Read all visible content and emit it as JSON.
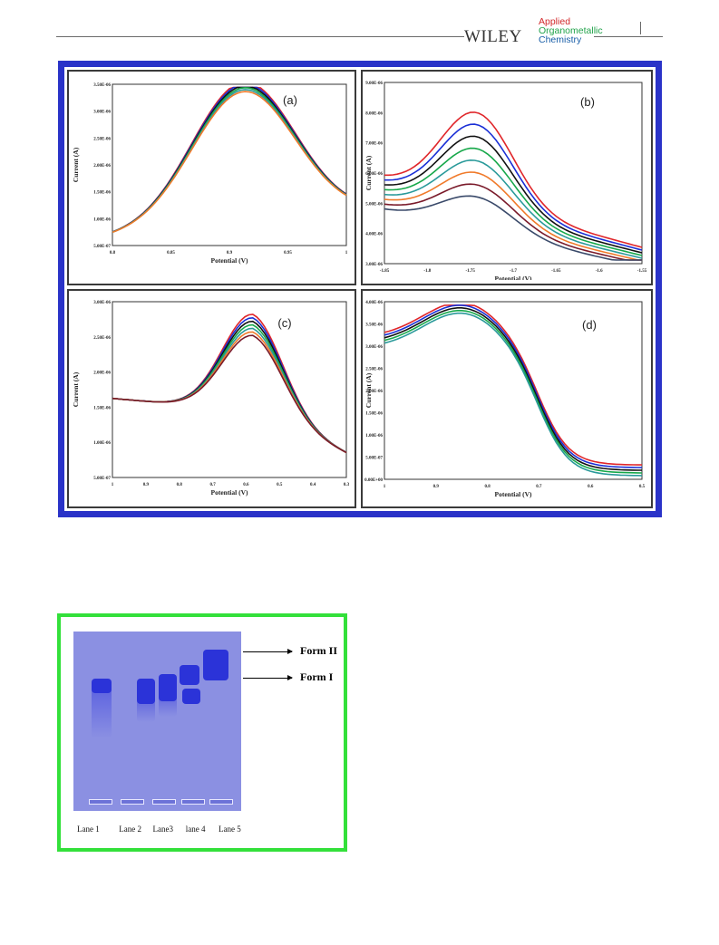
{
  "header": {
    "publisher": "WILEY",
    "journal_line1": "Applied",
    "journal_line2": "Organometallic",
    "journal_line3": "Chemistry"
  },
  "figure1": {
    "panels": [
      {
        "label": "(a)",
        "xlabel": "Potential (V)",
        "ylabel": "Current (A)",
        "xticks": [
          "0.8",
          "0.85",
          "0.9",
          "0.95",
          "1"
        ],
        "yticks": [
          "3.50E-06",
          "3.00E-06",
          "2.50E-06",
          "2.00E-06",
          "1.50E-06",
          "1.00E-06",
          "5.00E-07"
        ]
      },
      {
        "label": "(b)",
        "xlabel": "Potential (V)",
        "ylabel": "Current (A)",
        "xticks": [
          "-1.85",
          "-1.8",
          "-1.75",
          "-1.7",
          "-1.65",
          "-1.6",
          "-1.55"
        ],
        "yticks": [
          "9.00E-06",
          "8.00E-06",
          "7.00E-06",
          "6.00E-06",
          "5.00E-06",
          "4.00E-06",
          "3.00E-06"
        ]
      },
      {
        "label": "(c)",
        "xlabel": "Potential (V)",
        "ylabel": "Current (A)",
        "xticks": [
          "1",
          "0.9",
          "0.8",
          "0.7",
          "0.6",
          "0.5",
          "0.4",
          "0.3"
        ],
        "yticks": [
          "3.00E-06",
          "2.50E-06",
          "2.00E-06",
          "1.50E-06",
          "1.00E-06",
          "5.00E-07"
        ]
      },
      {
        "label": "(d)",
        "xlabel": "Potential (V)",
        "ylabel": "Current (A)",
        "xticks": [
          "1",
          "0.9",
          "0.8",
          "0.7",
          "0.6",
          "0.5"
        ],
        "yticks": [
          "4.00E-06",
          "3.50E-06",
          "3.00E-06",
          "2.50E-06",
          "2.00E-06",
          "1.50E-06",
          "1.00E-06",
          "5.00E-07",
          "0.00E+00"
        ]
      }
    ],
    "series_colors": [
      "#e0262a",
      "#1a2fd6",
      "#111111",
      "#17a84a",
      "#2a9a9a",
      "#f07a2a",
      "#7a1a2a",
      "#3a4a6a"
    ]
  },
  "figure2": {
    "form_ii": "Form II",
    "form_i": "Form I",
    "lanes": [
      "Lane 1",
      "Lane 2",
      "Lane3",
      "lane 4",
      "Lane 5"
    ]
  }
}
